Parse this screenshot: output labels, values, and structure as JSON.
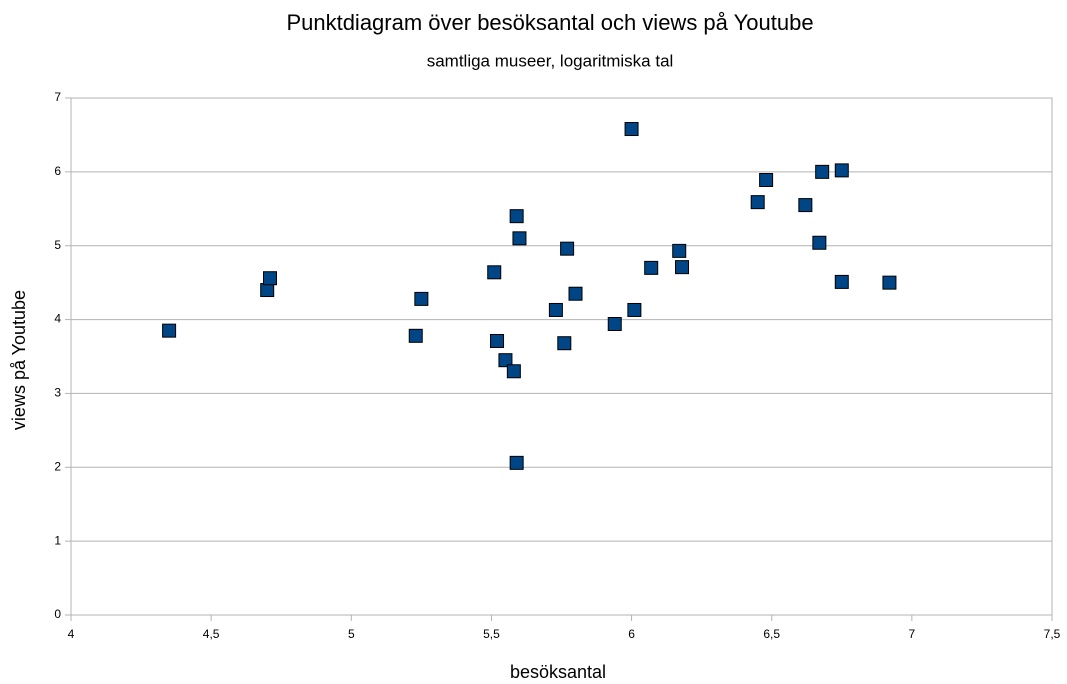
{
  "chart_data": {
    "type": "scatter",
    "title": "Punktdiagram över besöksantal och views på Youtube",
    "subtitle": "samtliga museer, logaritmiska tal",
    "x_label": "besöksantal",
    "y_label": "views på Youtube",
    "color": "#004586",
    "grid": true,
    "xlim": [
      4,
      7.5
    ],
    "ylim": [
      0,
      7
    ],
    "xticks": [
      4,
      {
        "value": 4.5,
        "label": "4,5"
      },
      5,
      {
        "value": 5.5,
        "label": "5,5"
      },
      6,
      {
        "value": 6.5,
        "label": "6,5"
      },
      7,
      {
        "value": 7.5,
        "label": "7,5"
      }
    ],
    "yticks": [
      0,
      1,
      2,
      3,
      4,
      5,
      6,
      7
    ],
    "x": [
      4.35,
      4.7,
      4.71,
      5.23,
      5.25,
      5.51,
      5.52,
      5.55,
      5.59,
      5.6,
      5.59,
      5.58,
      5.73,
      5.76,
      5.77,
      5.8,
      5.94,
      6.0,
      6.01,
      6.07,
      6.17,
      6.18,
      6.45,
      6.48,
      6.62,
      6.67,
      6.68,
      6.75,
      6.75,
      6.92
    ],
    "values": [
      3.85,
      4.4,
      4.56,
      3.78,
      4.28,
      4.64,
      3.71,
      3.45,
      5.4,
      5.1,
      2.06,
      3.3,
      4.13,
      3.68,
      4.96,
      4.35,
      3.94,
      6.58,
      4.13,
      4.7,
      4.93,
      4.71,
      5.59,
      5.89,
      5.55,
      5.04,
      6.0,
      4.51,
      6.02,
      4.5
    ]
  }
}
